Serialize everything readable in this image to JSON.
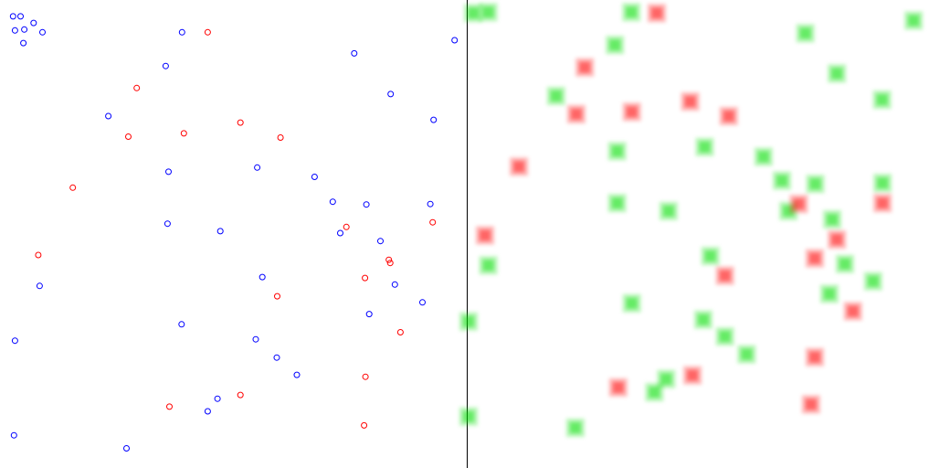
{
  "chart_data": [
    {
      "type": "scatter",
      "panel": "left",
      "marker": "hollow-circle",
      "xlim": [
        0,
        1
      ],
      "ylim": [
        0,
        1
      ],
      "y_direction": "down",
      "grid": false,
      "series": [
        {
          "name": "blue",
          "color": "#0000ff",
          "points": [
            [
              0.028,
              0.035
            ],
            [
              0.044,
              0.035
            ],
            [
              0.072,
              0.049
            ],
            [
              0.032,
              0.065
            ],
            [
              0.052,
              0.063
            ],
            [
              0.091,
              0.069
            ],
            [
              0.05,
              0.092
            ],
            [
              0.39,
              0.069
            ],
            [
              0.974,
              0.086
            ],
            [
              0.759,
              0.114
            ],
            [
              0.355,
              0.141
            ],
            [
              0.837,
              0.201
            ],
            [
              0.232,
              0.248
            ],
            [
              0.929,
              0.256
            ],
            [
              0.551,
              0.358
            ],
            [
              0.361,
              0.367
            ],
            [
              0.674,
              0.378
            ],
            [
              0.713,
              0.431
            ],
            [
              0.785,
              0.437
            ],
            [
              0.922,
              0.436
            ],
            [
              0.359,
              0.478
            ],
            [
              0.472,
              0.494
            ],
            [
              0.729,
              0.498
            ],
            [
              0.815,
              0.515
            ],
            [
              0.562,
              0.592
            ],
            [
              0.846,
              0.608
            ],
            [
              0.085,
              0.611
            ],
            [
              0.905,
              0.646
            ],
            [
              0.791,
              0.671
            ],
            [
              0.389,
              0.693
            ],
            [
              0.032,
              0.728
            ],
            [
              0.548,
              0.725
            ],
            [
              0.593,
              0.764
            ],
            [
              0.636,
              0.801
            ],
            [
              0.466,
              0.852
            ],
            [
              0.445,
              0.879
            ],
            [
              0.03,
              0.93
            ],
            [
              0.271,
              0.958
            ]
          ]
        },
        {
          "name": "red",
          "color": "#ff0000",
          "points": [
            [
              0.445,
              0.069
            ],
            [
              0.293,
              0.188
            ],
            [
              0.515,
              0.262
            ],
            [
              0.275,
              0.292
            ],
            [
              0.394,
              0.285
            ],
            [
              0.601,
              0.294
            ],
            [
              0.156,
              0.401
            ],
            [
              0.927,
              0.475
            ],
            [
              0.742,
              0.485
            ],
            [
              0.082,
              0.545
            ],
            [
              0.833,
              0.555
            ],
            [
              0.836,
              0.562
            ],
            [
              0.782,
              0.594
            ],
            [
              0.594,
              0.633
            ],
            [
              0.858,
              0.71
            ],
            [
              0.783,
              0.805
            ],
            [
              0.515,
              0.844
            ],
            [
              0.363,
              0.869
            ],
            [
              0.78,
              0.909
            ]
          ]
        }
      ]
    },
    {
      "type": "heatmap",
      "panel": "right",
      "marker": "blurred-square",
      "xlim": [
        0,
        1
      ],
      "ylim": [
        0,
        1
      ],
      "y_direction": "down",
      "grid": false,
      "series": [
        {
          "name": "green",
          "color": "#00dd00",
          "points": [
            [
              0.01,
              0.028
            ],
            [
              0.042,
              0.026
            ],
            [
              0.346,
              0.026
            ],
            [
              0.946,
              0.044
            ],
            [
              0.716,
              0.071
            ],
            [
              0.311,
              0.096
            ],
            [
              0.783,
              0.157
            ],
            [
              0.186,
              0.205
            ],
            [
              0.879,
              0.213
            ],
            [
              0.316,
              0.323
            ],
            [
              0.502,
              0.314
            ],
            [
              0.627,
              0.335
            ],
            [
              0.666,
              0.386
            ],
            [
              0.737,
              0.393
            ],
            [
              0.88,
              0.391
            ],
            [
              0.316,
              0.434
            ],
            [
              0.425,
              0.451
            ],
            [
              0.68,
              0.451
            ],
            [
              0.773,
              0.469
            ],
            [
              0.514,
              0.547
            ],
            [
              0.042,
              0.567
            ],
            [
              0.8,
              0.564
            ],
            [
              0.86,
              0.601
            ],
            [
              0.767,
              0.628
            ],
            [
              0.347,
              0.648
            ],
            [
              0.0,
              0.687
            ],
            [
              0.499,
              0.683
            ],
            [
              0.545,
              0.719
            ],
            [
              0.591,
              0.757
            ],
            [
              0.42,
              0.81
            ],
            [
              0.395,
              0.838
            ],
            [
              0.227,
              0.914
            ],
            [
              0.0,
              0.89
            ]
          ]
        },
        {
          "name": "red",
          "color": "#ff0000",
          "points": [
            [
              0.4,
              0.028
            ],
            [
              0.247,
              0.144
            ],
            [
              0.471,
              0.217
            ],
            [
              0.229,
              0.244
            ],
            [
              0.347,
              0.239
            ],
            [
              0.553,
              0.248
            ],
            [
              0.107,
              0.356
            ],
            [
              0.702,
              0.436
            ],
            [
              0.88,
              0.434
            ],
            [
              0.035,
              0.503
            ],
            [
              0.783,
              0.512
            ],
            [
              0.736,
              0.552
            ],
            [
              0.545,
              0.589
            ],
            [
              0.817,
              0.665
            ],
            [
              0.736,
              0.763
            ],
            [
              0.476,
              0.802
            ],
            [
              0.318,
              0.828
            ],
            [
              0.728,
              0.864
            ]
          ]
        }
      ]
    }
  ]
}
